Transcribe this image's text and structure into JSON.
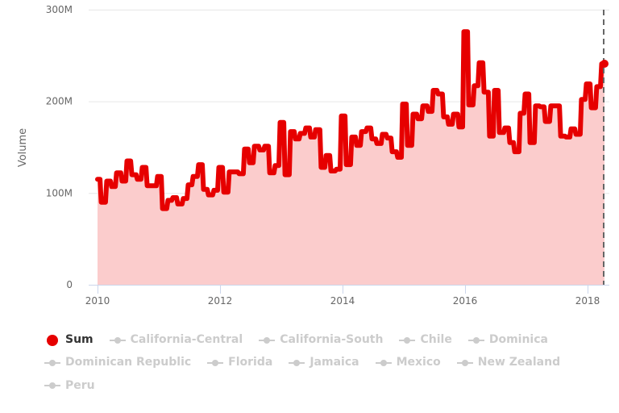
{
  "chart_data": {
    "type": "area",
    "title": "",
    "xlabel": "",
    "ylabel": "Volume",
    "ylim": [
      0,
      300000000
    ],
    "yticks": [
      "0",
      "100M",
      "200M",
      "300M"
    ],
    "xticks": [
      "2010",
      "2012",
      "2014",
      "2016",
      "2018"
    ],
    "grid": true,
    "legend_position": "bottom",
    "step": true,
    "series": [
      {
        "name": "Sum",
        "color": "#e60000",
        "visible": true,
        "x": [
          2010.0,
          2010.08,
          2010.17,
          2010.25,
          2010.33,
          2010.42,
          2010.5,
          2010.58,
          2010.67,
          2010.75,
          2010.83,
          2010.92,
          2011.0,
          2011.08,
          2011.17,
          2011.25,
          2011.33,
          2011.42,
          2011.5,
          2011.58,
          2011.67,
          2011.75,
          2011.83,
          2011.92,
          2012.0,
          2012.08,
          2012.17,
          2012.25,
          2012.33,
          2012.42,
          2012.5,
          2012.58,
          2012.67,
          2012.75,
          2012.83,
          2012.92,
          2013.0,
          2013.08,
          2013.17,
          2013.25,
          2013.33,
          2013.42,
          2013.5,
          2013.58,
          2013.67,
          2013.75,
          2013.83,
          2013.92,
          2014.0,
          2014.08,
          2014.17,
          2014.25,
          2014.33,
          2014.42,
          2014.5,
          2014.58,
          2014.67,
          2014.75,
          2014.83,
          2014.92,
          2015.0,
          2015.08,
          2015.17,
          2015.25,
          2015.33,
          2015.42,
          2015.5,
          2015.58,
          2015.67,
          2015.75,
          2015.83,
          2015.92,
          2016.0,
          2016.08,
          2016.17,
          2016.25,
          2016.33,
          2016.42,
          2016.5,
          2016.58,
          2016.67,
          2016.75,
          2016.83,
          2016.92,
          2017.0,
          2017.08,
          2017.17,
          2017.25,
          2017.33,
          2017.42,
          2017.5,
          2017.58,
          2017.67,
          2017.75,
          2017.83,
          2017.92,
          2018.0,
          2018.08,
          2018.17,
          2018.25
        ],
        "values_M": [
          115,
          90,
          113,
          107,
          122,
          113,
          135,
          120,
          115,
          128,
          108,
          108,
          118,
          83,
          92,
          95,
          88,
          94,
          109,
          118,
          131,
          104,
          98,
          103,
          128,
          101,
          123,
          123,
          121,
          148,
          133,
          151,
          147,
          151,
          122,
          130,
          177,
          120,
          167,
          159,
          165,
          171,
          161,
          169,
          128,
          141,
          124,
          126,
          184,
          131,
          161,
          152,
          167,
          171,
          159,
          154,
          164,
          160,
          145,
          139,
          197,
          152,
          186,
          181,
          195,
          189,
          212,
          208,
          183,
          175,
          186,
          172,
          276,
          196,
          217,
          242,
          210,
          162,
          212,
          166,
          171,
          155,
          145,
          187,
          208,
          155,
          195,
          194,
          178,
          195,
          195,
          162,
          161,
          170,
          164,
          202,
          219,
          193,
          216,
          241
        ]
      },
      {
        "name": "California-Central",
        "visible": false
      },
      {
        "name": "California-South",
        "visible": false
      },
      {
        "name": "Chile",
        "visible": false
      },
      {
        "name": "Dominica",
        "visible": false
      },
      {
        "name": "Dominican Republic",
        "visible": false
      },
      {
        "name": "Florida",
        "visible": false
      },
      {
        "name": "Jamaica",
        "visible": false
      },
      {
        "name": "Mexico",
        "visible": false
      },
      {
        "name": "New Zealand",
        "visible": false
      },
      {
        "name": "Peru",
        "visible": false
      }
    ]
  },
  "axes": {
    "y_label": "Volume",
    "y_ticks": [
      {
        "label": "300M",
        "value": 300
      },
      {
        "label": "200M",
        "value": 200
      },
      {
        "label": "100M",
        "value": 100
      },
      {
        "label": "0",
        "value": 0
      }
    ],
    "x_ticks": [
      {
        "label": "2010",
        "value": 2010
      },
      {
        "label": "2012",
        "value": 2012
      },
      {
        "label": "2014",
        "value": 2014
      },
      {
        "label": "2016",
        "value": 2016
      },
      {
        "label": "2018",
        "value": 2018
      }
    ]
  },
  "legend": {
    "items": [
      {
        "label": "Sum",
        "active": true
      },
      {
        "label": "California-Central",
        "active": false
      },
      {
        "label": "California-South",
        "active": false
      },
      {
        "label": "Chile",
        "active": false
      },
      {
        "label": "Dominica",
        "active": false
      },
      {
        "label": "Dominican Republic",
        "active": false
      },
      {
        "label": "Florida",
        "active": false
      },
      {
        "label": "Jamaica",
        "active": false
      },
      {
        "label": "Mexico",
        "active": false
      },
      {
        "label": "New Zealand",
        "active": false
      },
      {
        "label": "Peru",
        "active": false
      }
    ]
  },
  "colors": {
    "line": "#e60000",
    "fill": "#fbcccc",
    "grid": "#e6e6e6",
    "axis": "#ccd6eb",
    "crosshair": "#666666",
    "inactive": "#cccccc"
  }
}
